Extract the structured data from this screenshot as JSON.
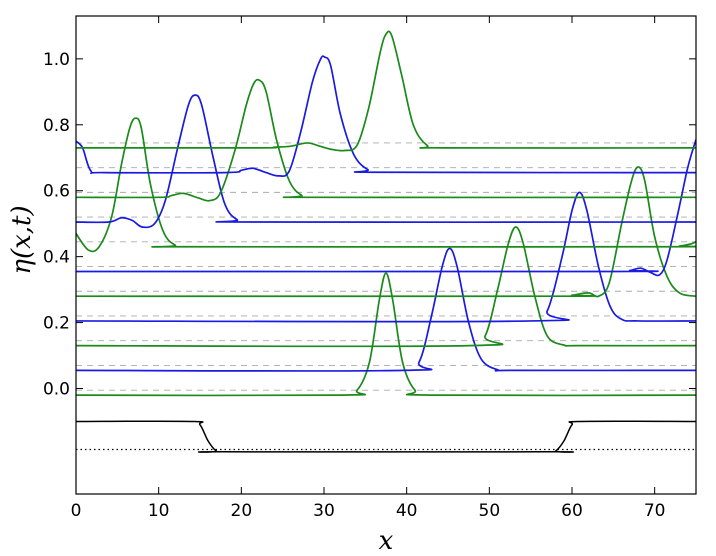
{
  "chart_data": {
    "type": "line",
    "xlabel": "x",
    "ylabel": "η(x,t)",
    "xlim": [
      0,
      75
    ],
    "ylim": [
      -0.32,
      1.13
    ],
    "grid": false,
    "xticks": [
      0,
      10,
      20,
      30,
      40,
      50,
      60,
      70
    ],
    "yticks": [
      0.0,
      0.2,
      0.4,
      0.6,
      0.8,
      1.0
    ],
    "ytick_labels": [
      "0.0",
      "0.2",
      "0.4",
      "0.6",
      "0.8",
      "1.0"
    ],
    "colors": {
      "green": "#1a8a1a",
      "blue": "#1a1ae0",
      "bottom": "#000000",
      "guide": "#aaaaaa"
    },
    "reference_levels": [
      -0.005,
      0.07,
      0.145,
      0.22,
      0.295,
      0.37,
      0.445,
      0.52,
      0.595,
      0.67,
      0.745
    ],
    "series": [
      {
        "color": "green",
        "baseline": -0.02,
        "points": [
          [
            0,
            -0.02
          ],
          [
            32,
            -0.02
          ],
          [
            34,
            -0.005
          ],
          [
            35.5,
            0.08
          ],
          [
            36.7,
            0.27
          ],
          [
            37.5,
            0.35
          ],
          [
            38.3,
            0.27
          ],
          [
            39.5,
            0.08
          ],
          [
            41,
            -0.005
          ],
          [
            43,
            -0.02
          ],
          [
            75,
            -0.02
          ]
        ]
      },
      {
        "color": "blue",
        "baseline": 0.055,
        "points": [
          [
            0,
            0.055
          ],
          [
            39.5,
            0.055
          ],
          [
            41.5,
            0.08
          ],
          [
            43,
            0.22
          ],
          [
            44.3,
            0.37
          ],
          [
            45.2,
            0.425
          ],
          [
            46.1,
            0.37
          ],
          [
            47.5,
            0.2
          ],
          [
            49,
            0.09
          ],
          [
            51,
            0.057
          ],
          [
            53,
            0.055
          ],
          [
            75,
            0.055
          ]
        ]
      },
      {
        "color": "green",
        "baseline": 0.13,
        "points": [
          [
            0,
            0.13
          ],
          [
            47.5,
            0.13
          ],
          [
            49.5,
            0.16
          ],
          [
            51,
            0.3
          ],
          [
            52.3,
            0.44
          ],
          [
            53.2,
            0.49
          ],
          [
            54.1,
            0.44
          ],
          [
            55.5,
            0.28
          ],
          [
            57,
            0.16
          ],
          [
            59,
            0.132
          ],
          [
            61,
            0.13
          ],
          [
            75,
            0.13
          ]
        ]
      },
      {
        "color": "blue",
        "baseline": 0.205,
        "points": [
          [
            0,
            0.205
          ],
          [
            55,
            0.205
          ],
          [
            57,
            0.235
          ],
          [
            58.8,
            0.4
          ],
          [
            60,
            0.54
          ],
          [
            60.9,
            0.595
          ],
          [
            61.8,
            0.54
          ],
          [
            63.2,
            0.37
          ],
          [
            64.6,
            0.25
          ],
          [
            66,
            0.21
          ],
          [
            68,
            0.205
          ],
          [
            75,
            0.205
          ]
        ]
      },
      {
        "color": "green",
        "baseline": 0.28,
        "points": [
          [
            0,
            0.28
          ],
          [
            58,
            0.28
          ],
          [
            60,
            0.283
          ],
          [
            62,
            0.29
          ],
          [
            63.2,
            0.28
          ],
          [
            64.5,
            0.32
          ],
          [
            66,
            0.5
          ],
          [
            67.2,
            0.63
          ],
          [
            68,
            0.672
          ],
          [
            68.8,
            0.63
          ],
          [
            70,
            0.46
          ],
          [
            71.5,
            0.34
          ],
          [
            73,
            0.29
          ],
          [
            75,
            0.28
          ]
        ]
      },
      {
        "color": "blue",
        "baseline": 0.355,
        "points": [
          [
            0,
            0.355
          ],
          [
            65,
            0.355
          ],
          [
            67,
            0.358
          ],
          [
            68.3,
            0.365
          ],
          [
            69.5,
            0.352
          ],
          [
            70.6,
            0.345
          ],
          [
            71.5,
            0.39
          ],
          [
            72.8,
            0.53
          ],
          [
            74,
            0.67
          ],
          [
            75,
            0.755
          ]
        ]
      },
      {
        "color": "green",
        "baseline": 0.43,
        "points": [
          [
            0,
            0.47
          ],
          [
            1.5,
            0.42
          ],
          [
            2.8,
            0.43
          ],
          [
            4.3,
            0.52
          ],
          [
            5.5,
            0.68
          ],
          [
            6.5,
            0.79
          ],
          [
            7.2,
            0.82
          ],
          [
            7.9,
            0.79
          ],
          [
            9,
            0.62
          ],
          [
            10.5,
            0.48
          ],
          [
            12,
            0.435
          ],
          [
            14,
            0.43
          ],
          [
            71,
            0.43
          ],
          [
            73,
            0.432
          ],
          [
            74.3,
            0.438
          ],
          [
            75,
            0.445
          ]
        ]
      },
      {
        "color": "blue",
        "baseline": 0.505,
        "points": [
          [
            0,
            0.505
          ],
          [
            4,
            0.505
          ],
          [
            5.5,
            0.518
          ],
          [
            6.8,
            0.51
          ],
          [
            8,
            0.49
          ],
          [
            9.5,
            0.5
          ],
          [
            10.8,
            0.57
          ],
          [
            12.3,
            0.73
          ],
          [
            13.6,
            0.86
          ],
          [
            14.4,
            0.89
          ],
          [
            15.2,
            0.86
          ],
          [
            16.6,
            0.7
          ],
          [
            18,
            0.56
          ],
          [
            19.5,
            0.512
          ],
          [
            21.5,
            0.505
          ],
          [
            75,
            0.505
          ]
        ]
      },
      {
        "color": "green",
        "baseline": 0.58,
        "points": [
          [
            0,
            0.58
          ],
          [
            10,
            0.58
          ],
          [
            11.5,
            0.585
          ],
          [
            13,
            0.592
          ],
          [
            14.8,
            0.578
          ],
          [
            16.2,
            0.57
          ],
          [
            17.5,
            0.595
          ],
          [
            19.2,
            0.72
          ],
          [
            20.6,
            0.86
          ],
          [
            21.5,
            0.925
          ],
          [
            22.2,
            0.935
          ],
          [
            23,
            0.9
          ],
          [
            24.3,
            0.75
          ],
          [
            25.8,
            0.63
          ],
          [
            27.3,
            0.586
          ],
          [
            29,
            0.58
          ],
          [
            75,
            0.58
          ]
        ]
      },
      {
        "color": "blue",
        "baseline": 0.655,
        "points": [
          [
            0,
            0.75
          ],
          [
            0.8,
            0.73
          ],
          [
            1.8,
            0.66
          ],
          [
            3.5,
            0.655
          ],
          [
            18,
            0.655
          ],
          [
            20,
            0.662
          ],
          [
            21.4,
            0.668
          ],
          [
            23,
            0.655
          ],
          [
            24.5,
            0.645
          ],
          [
            25.8,
            0.66
          ],
          [
            27.2,
            0.78
          ],
          [
            28.6,
            0.93
          ],
          [
            29.6,
            1.0
          ],
          [
            30.1,
            1.005
          ],
          [
            30.8,
            0.98
          ],
          [
            32,
            0.83
          ],
          [
            33.6,
            0.71
          ],
          [
            35.3,
            0.664
          ],
          [
            37,
            0.656
          ],
          [
            75,
            0.655
          ]
        ]
      },
      {
        "color": "green",
        "baseline": 0.73,
        "points": [
          [
            0,
            0.73
          ],
          [
            22,
            0.73
          ],
          [
            24,
            0.732
          ],
          [
            26,
            0.735
          ],
          [
            28,
            0.745
          ],
          [
            29.5,
            0.735
          ],
          [
            31,
            0.725
          ],
          [
            32.5,
            0.722
          ],
          [
            34,
            0.738
          ],
          [
            35.4,
            0.85
          ],
          [
            36.8,
            1.02
          ],
          [
            37.5,
            1.075
          ],
          [
            38.2,
            1.07
          ],
          [
            39.4,
            0.95
          ],
          [
            40.8,
            0.8
          ],
          [
            42.5,
            0.737
          ],
          [
            44.5,
            0.73
          ],
          [
            75,
            0.73
          ]
        ]
      }
    ],
    "bottom_profile": {
      "solid": [
        [
          0,
          -0.1
        ],
        [
          14,
          -0.1
        ],
        [
          15,
          -0.11
        ],
        [
          16,
          -0.16
        ],
        [
          17,
          -0.19
        ],
        [
          18,
          -0.192
        ],
        [
          57,
          -0.192
        ],
        [
          58,
          -0.19
        ],
        [
          59,
          -0.16
        ],
        [
          60,
          -0.11
        ],
        [
          61,
          -0.1
        ],
        [
          75,
          -0.1
        ]
      ],
      "dotted_level": -0.185
    }
  }
}
